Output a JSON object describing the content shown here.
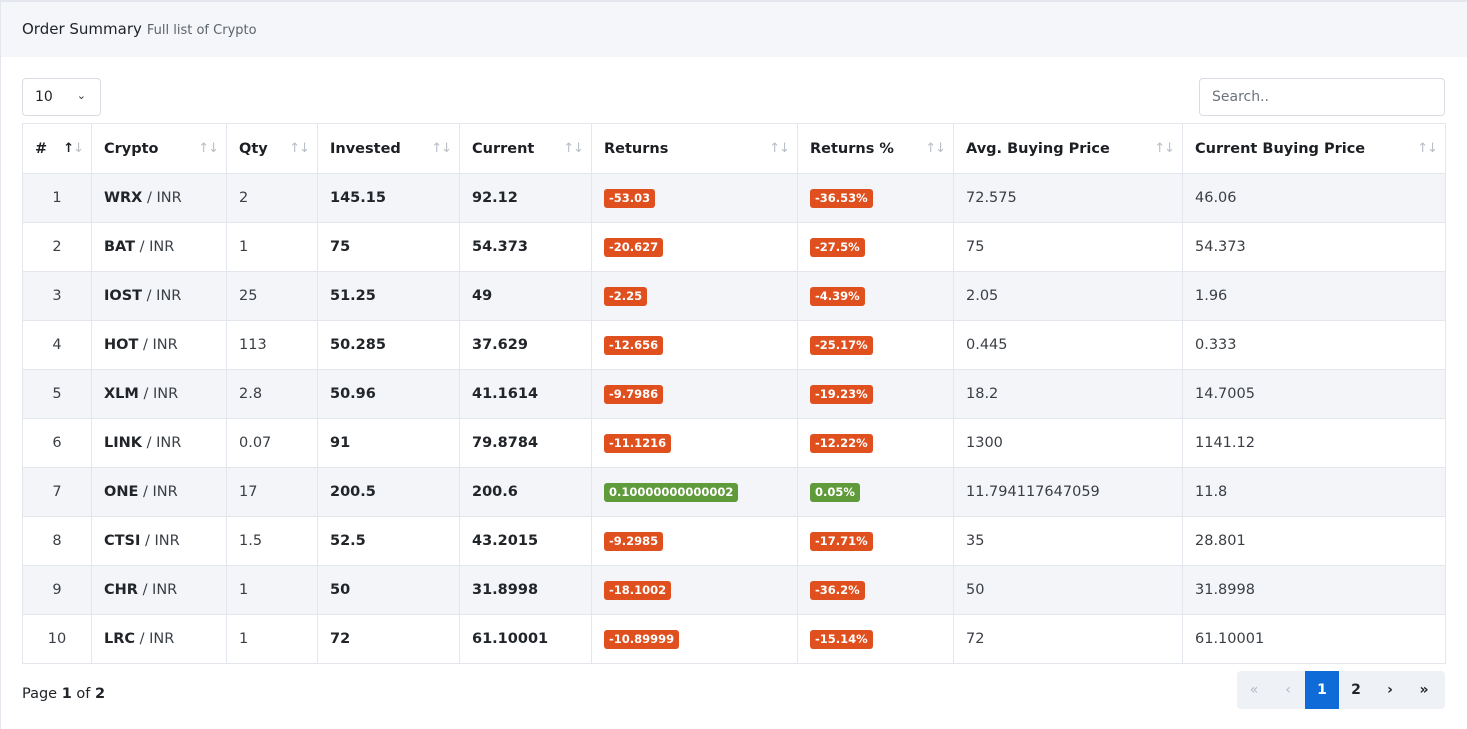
{
  "header": {
    "title": "Order Summary",
    "subtitle": "Full list of Crypto"
  },
  "controls": {
    "page_size": "10",
    "search_placeholder": "Search.."
  },
  "columns": [
    "#",
    "Crypto",
    "Qty",
    "Invested",
    "Current",
    "Returns",
    "Returns %",
    "Avg. Buying Price",
    "Current Buying Price"
  ],
  "rows": [
    {
      "idx": "1",
      "coin": "WRX",
      "quote": "/ INR",
      "qty": "2",
      "invested": "145.15",
      "current": "92.12",
      "returns": "-53.03",
      "returns_pct": "-36.53%",
      "avg": "72.575",
      "cur_price": "46.06",
      "status": "neg"
    },
    {
      "idx": "2",
      "coin": "BAT",
      "quote": "/ INR",
      "qty": "1",
      "invested": "75",
      "current": "54.373",
      "returns": "-20.627",
      "returns_pct": "-27.5%",
      "avg": "75",
      "cur_price": "54.373",
      "status": "neg"
    },
    {
      "idx": "3",
      "coin": "IOST",
      "quote": "/ INR",
      "qty": "25",
      "invested": "51.25",
      "current": "49",
      "returns": "-2.25",
      "returns_pct": "-4.39%",
      "avg": "2.05",
      "cur_price": "1.96",
      "status": "neg"
    },
    {
      "idx": "4",
      "coin": "HOT",
      "quote": "/ INR",
      "qty": "113",
      "invested": "50.285",
      "current": "37.629",
      "returns": "-12.656",
      "returns_pct": "-25.17%",
      "avg": "0.445",
      "cur_price": "0.333",
      "status": "neg"
    },
    {
      "idx": "5",
      "coin": "XLM",
      "quote": "/ INR",
      "qty": "2.8",
      "invested": "50.96",
      "current": "41.1614",
      "returns": "-9.7986",
      "returns_pct": "-19.23%",
      "avg": "18.2",
      "cur_price": "14.7005",
      "status": "neg"
    },
    {
      "idx": "6",
      "coin": "LINK",
      "quote": "/ INR",
      "qty": "0.07",
      "invested": "91",
      "current": "79.8784",
      "returns": "-11.1216",
      "returns_pct": "-12.22%",
      "avg": "1300",
      "cur_price": "1141.12",
      "status": "neg"
    },
    {
      "idx": "7",
      "coin": "ONE",
      "quote": "/ INR",
      "qty": "17",
      "invested": "200.5",
      "current": "200.6",
      "returns": "0.10000000000002",
      "returns_pct": "0.05%",
      "avg": "11.794117647059",
      "cur_price": "11.8",
      "status": "pos"
    },
    {
      "idx": "8",
      "coin": "CTSI",
      "quote": "/ INR",
      "qty": "1.5",
      "invested": "52.5",
      "current": "43.2015",
      "returns": "-9.2985",
      "returns_pct": "-17.71%",
      "avg": "35",
      "cur_price": "28.801",
      "status": "neg"
    },
    {
      "idx": "9",
      "coin": "CHR",
      "quote": "/ INR",
      "qty": "1",
      "invested": "50",
      "current": "31.8998",
      "returns": "-18.1002",
      "returns_pct": "-36.2%",
      "avg": "50",
      "cur_price": "31.8998",
      "status": "neg"
    },
    {
      "idx": "10",
      "coin": "LRC",
      "quote": "/ INR",
      "qty": "1",
      "invested": "72",
      "current": "61.10001",
      "returns": "-10.89999",
      "returns_pct": "-15.14%",
      "avg": "72",
      "cur_price": "61.10001",
      "status": "neg"
    }
  ],
  "footer": {
    "page_label": "Page",
    "current_page": "1",
    "of_label": "of",
    "total_pages": "2"
  },
  "pagination": {
    "first": "«",
    "prev": "‹",
    "pages": [
      "1",
      "2"
    ],
    "next": "›",
    "last": "»",
    "active_page": "1"
  },
  "colors": {
    "negative": "#e0501f",
    "positive": "#5f9b3b",
    "active_page": "#0e6bd8",
    "striped_row": "#f3f5f8"
  },
  "icons": {
    "sort": "sort-arrows-icon",
    "dropdown": "chevron-down-icon"
  }
}
